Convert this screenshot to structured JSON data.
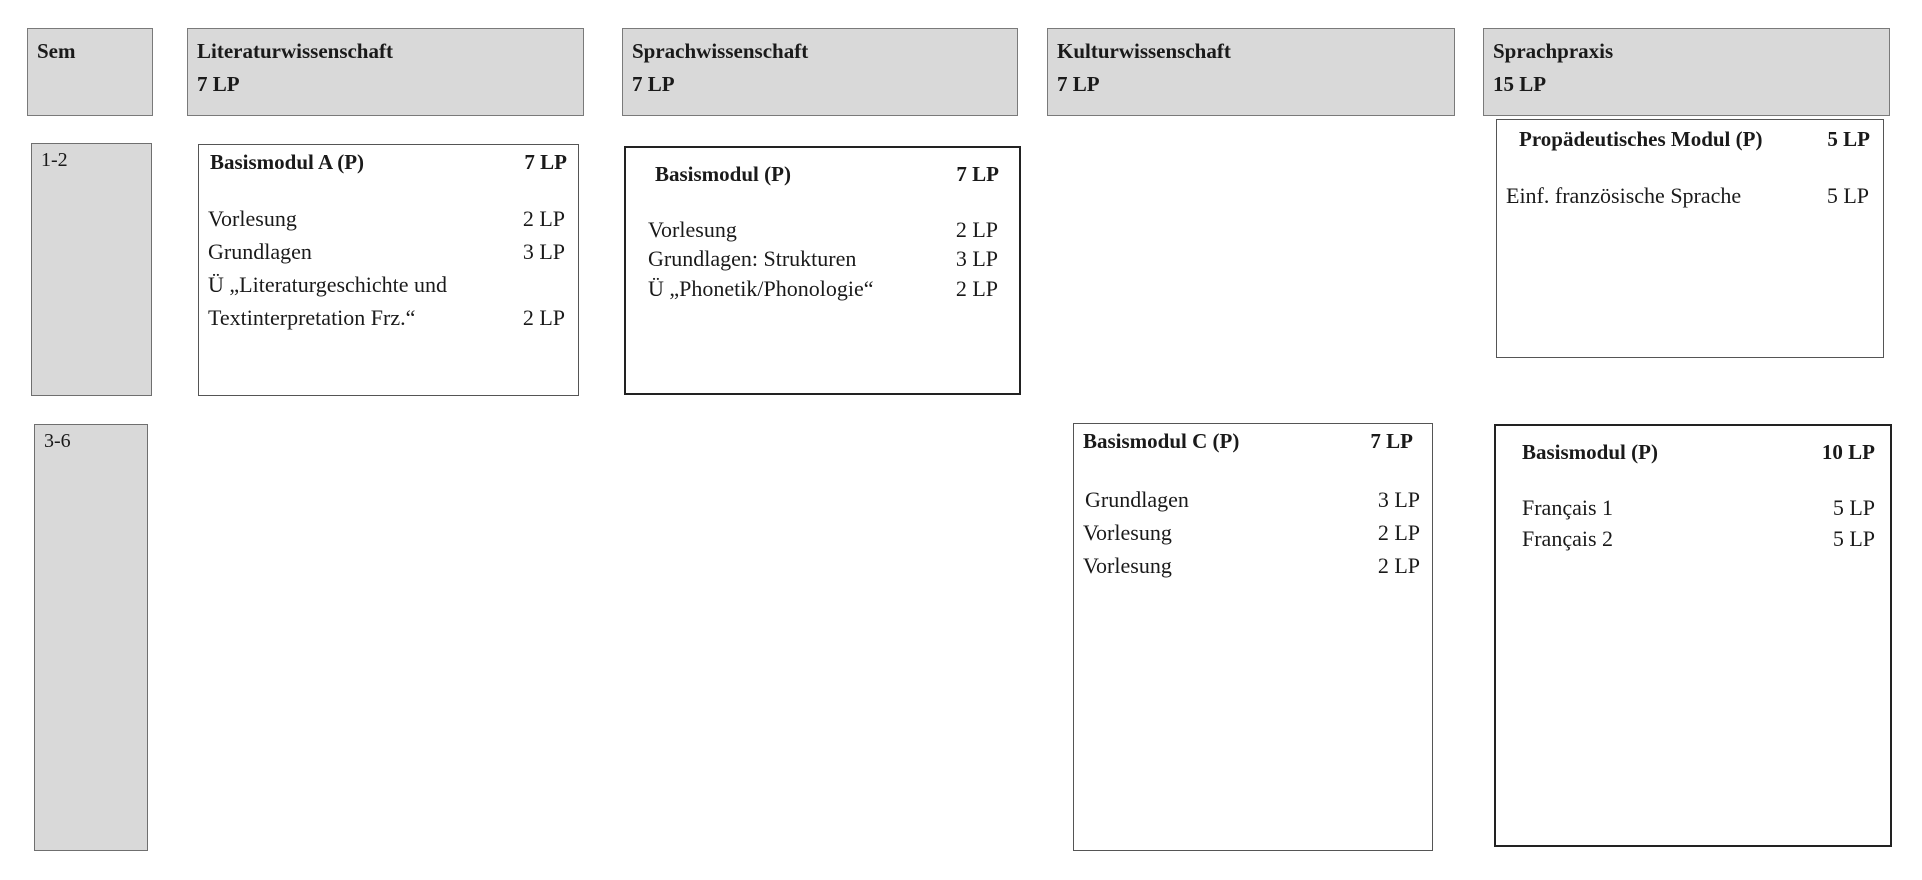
{
  "headers": [
    {
      "title": "Sem",
      "lp": ""
    },
    {
      "title": "Literaturwissenschaft",
      "lp": "7 LP"
    },
    {
      "title": "Sprachwissenschaft",
      "lp": "7 LP"
    },
    {
      "title": "Kulturwissenschaft",
      "lp": "7 LP"
    },
    {
      "title": "Sprachpraxis",
      "lp": "15 LP"
    }
  ],
  "semesters": [
    {
      "label": "1-2"
    },
    {
      "label": "3-6"
    }
  ],
  "modules": {
    "lit_a": {
      "title": "Basismodul  A (P)",
      "lp": "7 LP",
      "items": [
        {
          "name": "Vorlesung",
          "lp": "2 LP"
        },
        {
          "name": "Grundlagen",
          "lp": "3 LP"
        },
        {
          "name": "Ü „Literaturgeschichte und",
          "lp": ""
        },
        {
          "name": "Textinterpretation Frz.“",
          "lp": "2 LP"
        }
      ]
    },
    "sprach": {
      "title": "Basismodul (P)",
      "lp": "7 LP",
      "items": [
        {
          "name": "Vorlesung",
          "lp": "2 LP"
        },
        {
          "name": "Grundlagen: Strukturen",
          "lp": "3 LP"
        },
        {
          "name": "Ü „Phonetik/Phonologie“",
          "lp": "2 LP"
        }
      ]
    },
    "prop": {
      "title": "Propädeutisches Modul  (P)",
      "lp": "5 LP",
      "items": [
        {
          "name": "Einf. französische Sprache",
          "lp": "5 LP"
        }
      ]
    },
    "kultur_c": {
      "title": "Basismodul C (P)",
      "lp": "7 LP",
      "items": [
        {
          "name": "Grundlagen",
          "lp": "3 LP"
        },
        {
          "name": "Vorlesung",
          "lp": "2 LP"
        },
        {
          "name": "Vorlesung",
          "lp": "2 LP"
        }
      ]
    },
    "praxis": {
      "title": "Basismodul (P)",
      "lp": "10 LP",
      "items": [
        {
          "name": "Français 1",
          "lp": "5 LP"
        },
        {
          "name": "Français 2",
          "lp": "5 LP"
        }
      ]
    }
  }
}
